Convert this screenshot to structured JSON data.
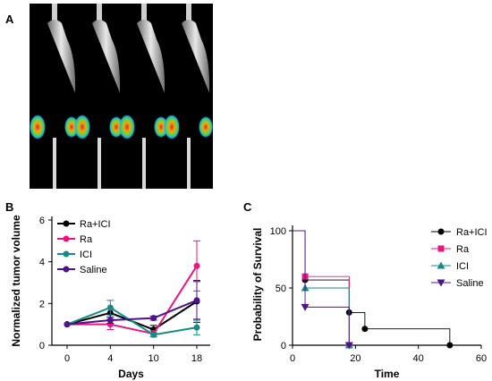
{
  "panels": {
    "a": "A",
    "b": "B",
    "c": "C"
  },
  "colors": {
    "ra_ici": "#000000",
    "ra": "#e8177d",
    "ici": "#1a8a86",
    "saline": "#4b1487"
  },
  "image": {
    "description_icon": "mouse-bioluminescence-image",
    "subjects": 4
  },
  "chart_data": [
    {
      "type": "line",
      "xlabel": "Days",
      "ylabel": "Normalized tumor volume",
      "categories": [
        "0",
        "4",
        "10",
        "18"
      ],
      "ylim": [
        0,
        6
      ],
      "yticks": [
        0,
        2,
        4,
        6
      ],
      "legend_position": "top-left",
      "series": [
        {
          "name": "Ra+ICI",
          "color": "#000000",
          "marker": "circle",
          "values": [
            1.0,
            1.55,
            0.75,
            2.1
          ],
          "err": [
            0,
            0.2,
            0.2,
            1.0
          ]
        },
        {
          "name": "Ra",
          "color": "#e8177d",
          "marker": "circle",
          "values": [
            1.0,
            1.0,
            0.55,
            3.8
          ],
          "err": [
            0,
            0.25,
            0.15,
            1.2
          ]
        },
        {
          "name": "ICI",
          "color": "#1a8a86",
          "marker": "circle",
          "values": [
            1.0,
            1.8,
            0.5,
            0.85
          ],
          "err": [
            0,
            0.35,
            0.1,
            0.35
          ]
        },
        {
          "name": "Saline",
          "color": "#4b1487",
          "marker": "circle",
          "values": [
            1.0,
            1.2,
            1.3,
            2.15
          ],
          "err": [
            0,
            0.15,
            0.1,
            0.9
          ]
        }
      ]
    },
    {
      "type": "line",
      "subtype": "survival-step",
      "xlabel": "Time",
      "ylabel": "Probability of Survival",
      "xlim": [
        0,
        60
      ],
      "ylim": [
        0,
        100
      ],
      "xticks": [
        0,
        20,
        40,
        60
      ],
      "yticks": [
        0,
        50,
        100
      ],
      "legend_position": "right",
      "series": [
        {
          "name": "Ra+ICI",
          "color": "#000000",
          "marker": "circle",
          "steps": [
            [
              0,
              100
            ],
            [
              4,
              57
            ],
            [
              18,
              28.6
            ],
            [
              23,
              14.3
            ],
            [
              50,
              0
            ]
          ],
          "end": 50
        },
        {
          "name": "Ra",
          "color": "#e8177d",
          "marker": "square",
          "steps": [
            [
              0,
              100
            ],
            [
              4,
              60
            ],
            [
              18,
              0
            ]
          ],
          "end": 18
        },
        {
          "name": "ICI",
          "color": "#1a8a86",
          "marker": "triangle-up",
          "steps": [
            [
              0,
              100
            ],
            [
              4,
              50
            ],
            [
              18,
              0
            ]
          ],
          "end": 18
        },
        {
          "name": "Saline",
          "color": "#4b1487",
          "marker": "triangle-down",
          "steps": [
            [
              0,
              100
            ],
            [
              4,
              33.3
            ],
            [
              18,
              0
            ]
          ],
          "end": 18
        }
      ]
    }
  ]
}
